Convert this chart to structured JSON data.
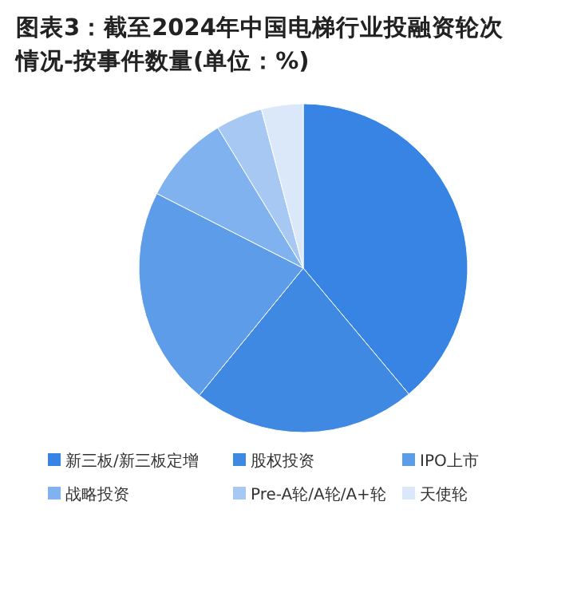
{
  "chart_data": {
    "type": "pie",
    "title": "图表3：截至2024年中国电梯行业投融资轮次情况-按事件数量(单位：%)",
    "categories": [
      "新三板/新三板定增",
      "股权投资",
      "IPO上市",
      "战略投资",
      "Pre-A轮/A轮/A+轮",
      "天使轮"
    ],
    "values": [
      38.9,
      22.0,
      21.6,
      8.8,
      4.6,
      4.1
    ],
    "colors": [
      "#3784e4",
      "#3f89e2",
      "#5c9ce9",
      "#80b2ef",
      "#a6c8f3",
      "#dbe8fa"
    ],
    "legend": "bottom"
  }
}
